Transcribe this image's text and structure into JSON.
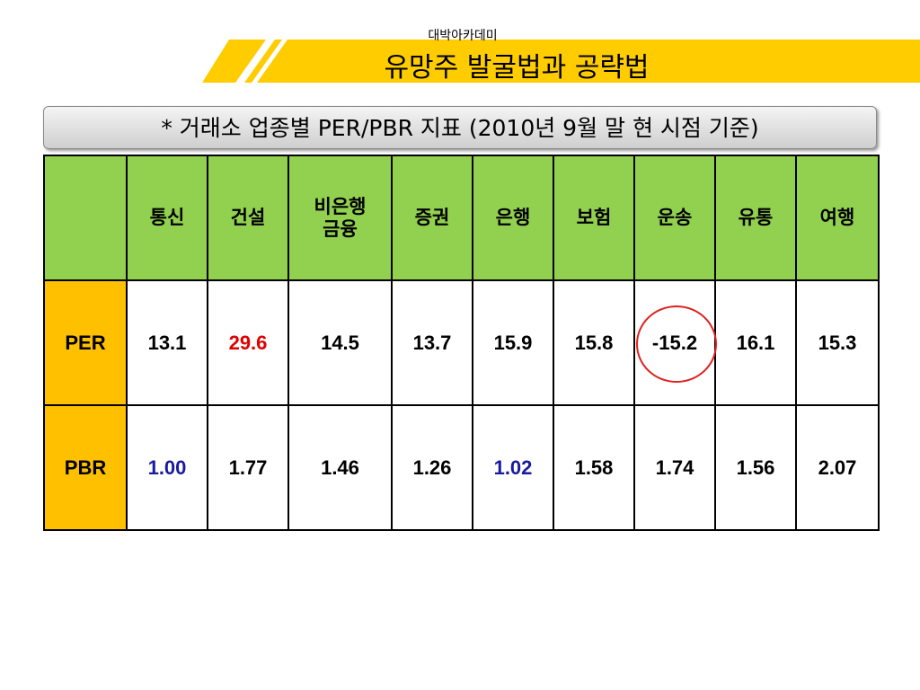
{
  "header": {
    "brand": "대박아카데미",
    "title": "유망주 발굴법과 공략법"
  },
  "subtitle": "* 거래소 업종별 PER/PBR 지표 (2010년 9월 말 현 시점 기준)",
  "table": {
    "columns": [
      "통신",
      "건설",
      "비은행\n금융",
      "증권",
      "은행",
      "보험",
      "운송",
      "유통",
      "여행"
    ],
    "rows": [
      {
        "label": "PER",
        "values": [
          "13.1",
          "29.6",
          "14.5",
          "13.7",
          "15.9",
          "15.8",
          "-15.2",
          "16.1",
          "15.3"
        ]
      },
      {
        "label": "PBR",
        "values": [
          "1.00",
          "1.77",
          "1.46",
          "1.26",
          "1.02",
          "1.58",
          "1.74",
          "1.56",
          "2.07"
        ]
      }
    ]
  }
}
